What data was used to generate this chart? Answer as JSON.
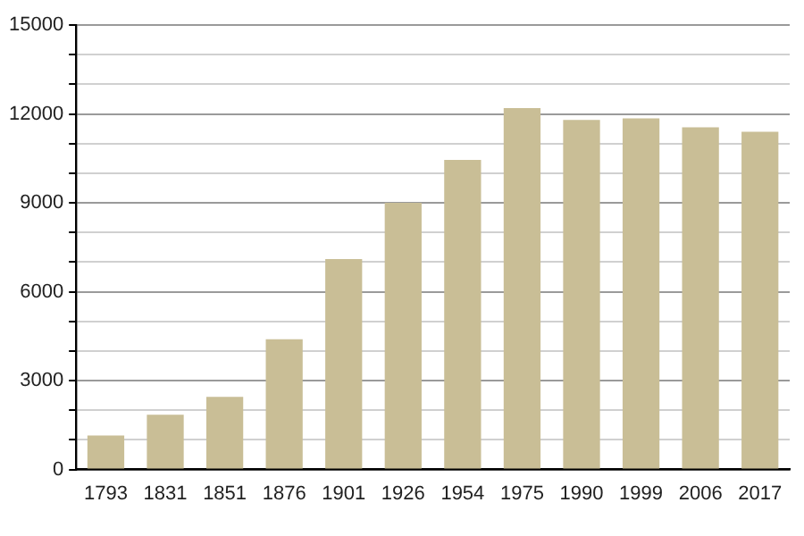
{
  "chart_data": {
    "type": "bar",
    "categories": [
      "1793",
      "1831",
      "1851",
      "1876",
      "1901",
      "1926",
      "1954",
      "1975",
      "1990",
      "1999",
      "2006",
      "2017"
    ],
    "values": [
      1150,
      1850,
      2450,
      4400,
      7100,
      9000,
      10450,
      12200,
      11800,
      11850,
      11550,
      11400
    ],
    "color": "#c9be96",
    "ylim": [
      0,
      15000
    ],
    "yticks": [
      0,
      {
        "value": 1000,
        "label": null
      },
      {
        "value": 2000,
        "label": null
      },
      3000,
      {
        "value": 4000,
        "label": null
      },
      {
        "value": 5000,
        "label": null
      },
      6000,
      {
        "value": 7000,
        "label": null
      },
      {
        "value": 8000,
        "label": null
      },
      9000,
      {
        "value": 10000,
        "label": null
      },
      {
        "value": 11000,
        "label": null
      },
      12000,
      {
        "value": 13000,
        "label": null
      },
      {
        "value": 14000,
        "label": null
      },
      15000
    ],
    "grid": "y",
    "legend": false
  }
}
